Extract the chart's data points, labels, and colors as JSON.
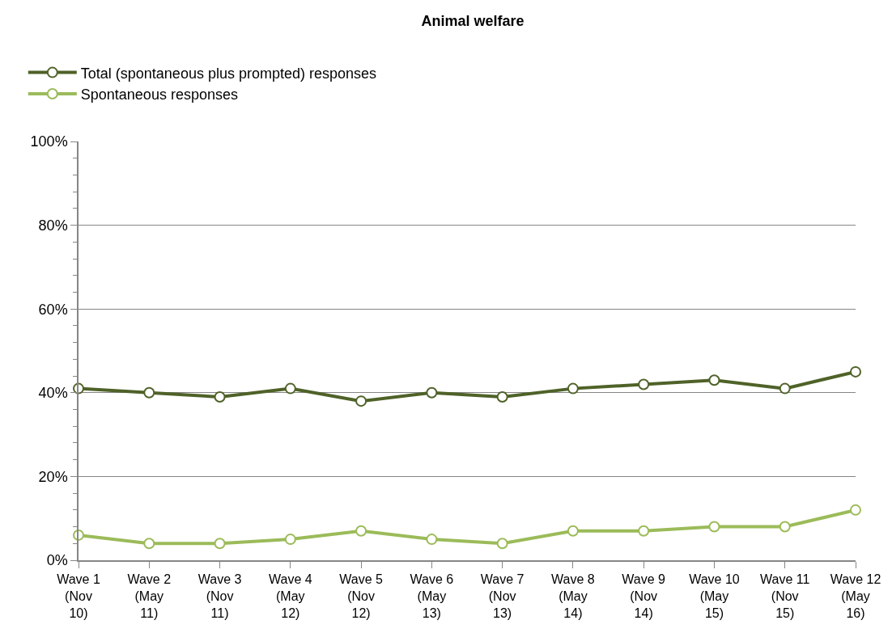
{
  "chart_data": {
    "type": "line",
    "title": "Animal welfare",
    "categories": [
      "Wave 1 (Nov 10)",
      "Wave 2 (May 11)",
      "Wave 3 (Nov 11)",
      "Wave 4 (May 12)",
      "Wave 5 (Nov 12)",
      "Wave 6 (May 13)",
      "Wave 7 (Nov 13)",
      "Wave 8 (May 14)",
      "Wave 9 (Nov 14)",
      "Wave 10 (May 15)",
      "Wave 11 (Nov 15)",
      "Wave 12 (May 16)"
    ],
    "series": [
      {
        "name": "Total (spontaneous plus prompted) responses",
        "color": "#4f6228",
        "values": [
          41,
          40,
          39,
          41,
          38,
          40,
          39,
          41,
          42,
          43,
          41,
          45
        ]
      },
      {
        "name": "Spontaneous responses",
        "color": "#9bbb59",
        "values": [
          6,
          4,
          4,
          5,
          7,
          5,
          4,
          7,
          7,
          8,
          8,
          12
        ]
      }
    ],
    "ylim": [
      0,
      100
    ],
    "yticks": [
      {
        "value": 0,
        "label": "0%"
      },
      {
        "value": 20,
        "label": "20%"
      },
      {
        "value": 40,
        "label": "40%"
      },
      {
        "value": 60,
        "label": "60%"
      },
      {
        "value": 80,
        "label": "80%"
      },
      {
        "value": 100,
        "label": "100%"
      }
    ],
    "grid": "y",
    "legend": "top left",
    "marker": "circle",
    "line_style": "solid"
  }
}
